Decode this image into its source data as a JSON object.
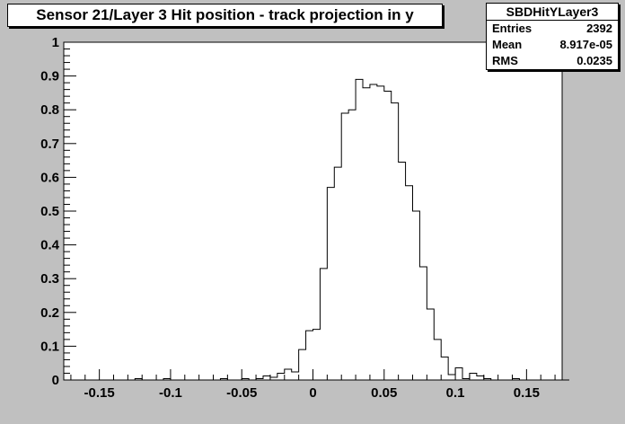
{
  "chart_data": {
    "type": "histogram",
    "title": "Sensor 21/Layer 3 Hit position - track projection in y",
    "stats": {
      "name": "SBDHitYLayer3",
      "rows": [
        {
          "label": "Entries",
          "value": "2392"
        },
        {
          "label": "Mean",
          "value": "8.917e-05"
        },
        {
          "label": "RMS",
          "value": "0.0235"
        }
      ]
    },
    "xlim": [
      -0.175,
      0.175
    ],
    "ylim": [
      0,
      1
    ],
    "bin_width": 0.005,
    "xticks": [
      {
        "value": -0.15,
        "label": "-0.15"
      },
      {
        "value": -0.1,
        "label": "-0.1"
      },
      {
        "value": -0.05,
        "label": "-0.05"
      },
      {
        "value": 0,
        "label": "0"
      },
      {
        "value": 0.05,
        "label": "0.05"
      },
      {
        "value": 0.1,
        "label": "0.1"
      },
      {
        "value": 0.15,
        "label": "0.15"
      }
    ],
    "yticks": [
      {
        "value": 0,
        "label": "0"
      },
      {
        "value": 0.1,
        "label": "0.1"
      },
      {
        "value": 0.2,
        "label": "0.2"
      },
      {
        "value": 0.3,
        "label": "0.3"
      },
      {
        "value": 0.4,
        "label": "0.4"
      },
      {
        "value": 0.5,
        "label": "0.5"
      },
      {
        "value": 0.6,
        "label": "0.6"
      },
      {
        "value": 0.7,
        "label": "0.7"
      },
      {
        "value": 0.8,
        "label": "0.8"
      },
      {
        "value": 0.9,
        "label": "0.9"
      },
      {
        "value": 1,
        "label": "1"
      }
    ],
    "values": [
      0,
      0,
      0,
      0,
      0,
      0,
      0,
      0,
      0,
      0,
      0.004,
      0,
      0,
      0,
      0.004,
      0,
      0,
      0,
      0,
      0,
      0,
      0,
      0.004,
      0,
      0,
      0.004,
      0,
      0.004,
      0.012,
      0.008,
      0.02,
      0.032,
      0.024,
      0.09,
      0.146,
      0.15,
      0.33,
      0.57,
      0.63,
      0.79,
      0.8,
      0.89,
      0.865,
      0.875,
      0.87,
      0.855,
      0.82,
      0.645,
      0.575,
      0.5,
      0.335,
      0.21,
      0.12,
      0.068,
      0.016,
      0.036,
      0.004,
      0.02,
      0.012,
      0.004,
      0,
      0,
      0,
      0.004,
      0,
      0,
      0,
      0,
      0,
      0,
      0
    ]
  },
  "colors": {
    "background": "#c0c0c0",
    "frame": "#ffffff",
    "line": "#000000"
  }
}
